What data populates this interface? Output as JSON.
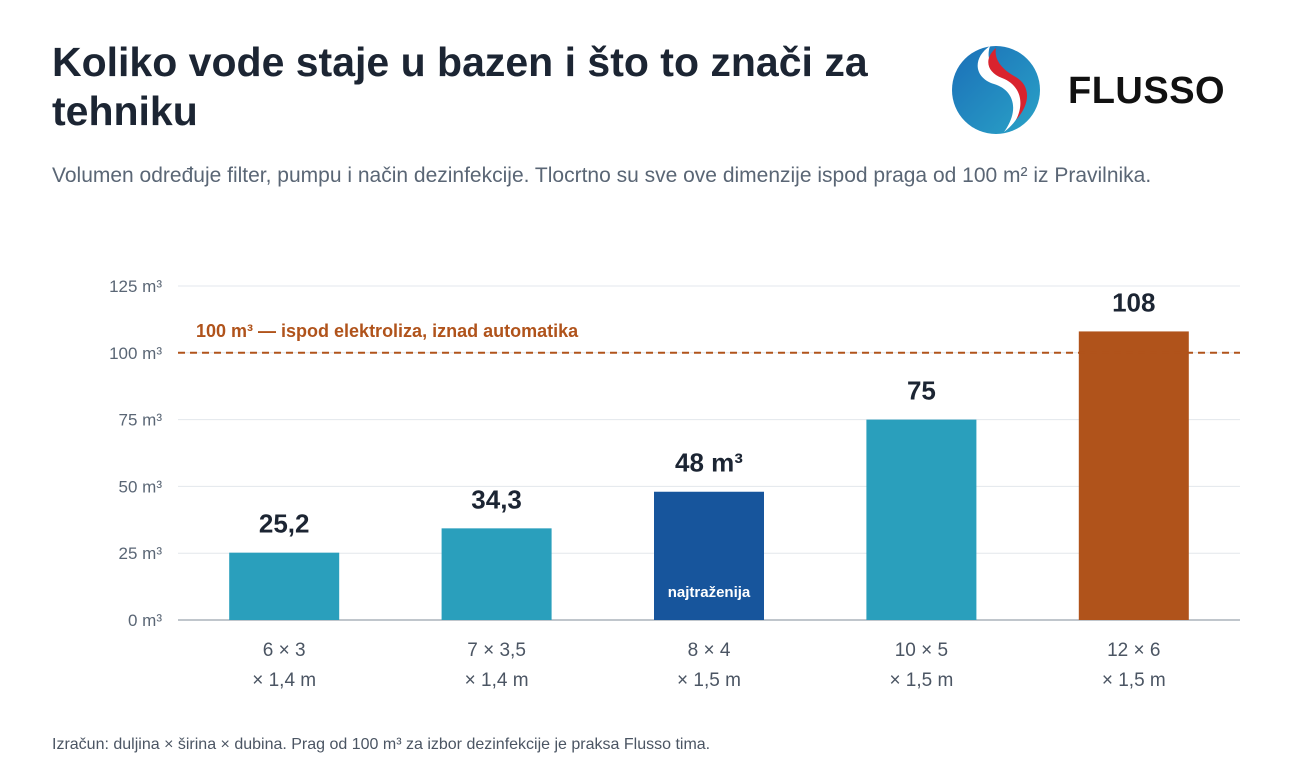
{
  "header": {
    "title": "Koliko vode staje u bazen i što to znači za tehniku",
    "subtitle": "Volumen određuje filter, pumpu i način dezinfekcije. Tlocrtno su sve ove dimenzije ispod praga od 100 m² iz Pravilnika."
  },
  "logo": {
    "text": "FLUSSO",
    "icon": "flusso-logo-icon"
  },
  "footnote": "Izračun: duljina × širina × dubina. Prag od 100 m³ za izbor dezinfekcije je praksa Flusso tima.",
  "chart_data": {
    "type": "bar",
    "categories": [
      [
        "6 × 3",
        "× 1,4 m"
      ],
      [
        "7 × 3,5",
        "× 1,4 m"
      ],
      [
        "8 × 4",
        "× 1,5 m"
      ],
      [
        "10 × 5",
        "× 1,5 m"
      ],
      [
        "12 × 6",
        "× 1,5 m"
      ]
    ],
    "values": [
      25.2,
      34.3,
      48,
      75,
      108
    ],
    "value_labels": [
      "25,2",
      "34,3",
      "48 m³",
      "75",
      "108"
    ],
    "bar_colors": [
      "#2a9fbc",
      "#2a9fbc",
      "#17559c",
      "#2a9fbc",
      "#b0531b"
    ],
    "inner_labels": [
      "",
      "",
      "najtraženija",
      "",
      ""
    ],
    "yticks": [
      0,
      25,
      50,
      75,
      100,
      125
    ],
    "ytick_labels": [
      "0 m³",
      "25 m³",
      "50 m³",
      "75 m³",
      "100 m³",
      "125 m³"
    ],
    "ylim": [
      0,
      125
    ],
    "grid": true,
    "threshold": {
      "value": 100,
      "label": "100 m³ — ispod elektroliza, iznad automatika",
      "color": "#b0531b"
    }
  }
}
